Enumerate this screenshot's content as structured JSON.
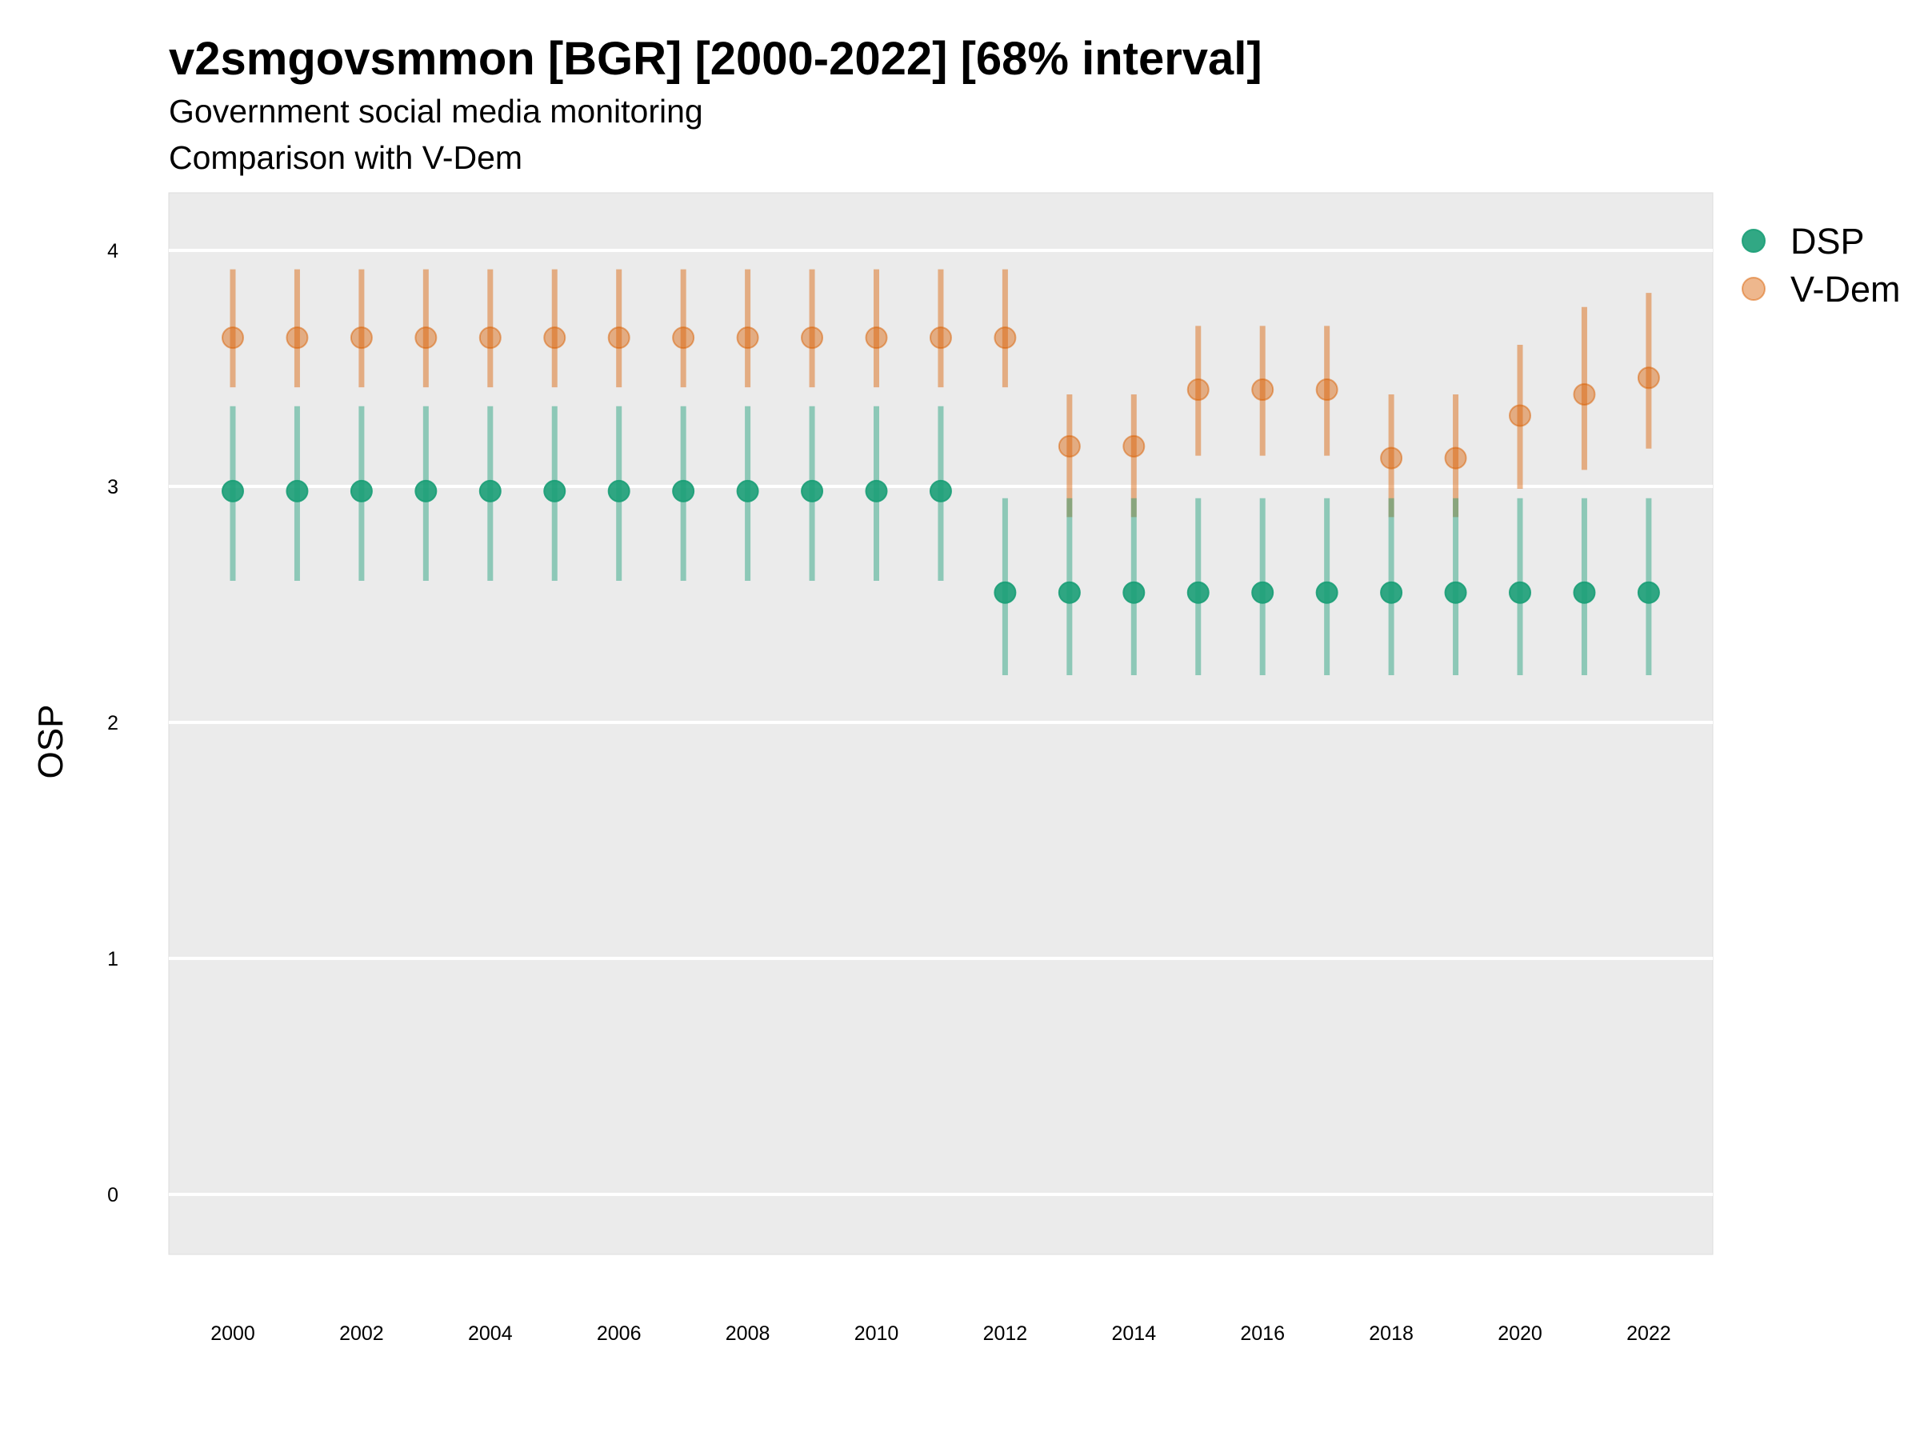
{
  "chart_data": {
    "type": "scatter",
    "title": "v2smgovsmmon [BGR] [2000-2022] [68% interval]",
    "subtitle": "Government social media monitoring",
    "caption": "Comparison with V-Dem",
    "xlabel": "",
    "ylabel": "OSP",
    "xlim": [
      1999,
      2023
    ],
    "ylim": [
      -0.25,
      4.25
    ],
    "x_ticks": [
      2000,
      2002,
      2004,
      2006,
      2008,
      2010,
      2012,
      2014,
      2016,
      2018,
      2020,
      2022
    ],
    "y_ticks": [
      0,
      1,
      2,
      3,
      4
    ],
    "grid": true,
    "legend_position": "right-top",
    "x": [
      2000,
      2001,
      2002,
      2003,
      2004,
      2005,
      2006,
      2007,
      2008,
      2009,
      2010,
      2011,
      2012,
      2013,
      2014,
      2015,
      2016,
      2017,
      2018,
      2019,
      2020,
      2021,
      2022
    ],
    "series": [
      {
        "name": "DSP",
        "color": "#1b9e77",
        "values": [
          2.98,
          2.98,
          2.98,
          2.98,
          2.98,
          2.98,
          2.98,
          2.98,
          2.98,
          2.98,
          2.98,
          2.98,
          2.55,
          2.55,
          2.55,
          2.55,
          2.55,
          2.55,
          2.55,
          2.55,
          2.55,
          2.55,
          2.55
        ],
        "lower": [
          2.6,
          2.6,
          2.6,
          2.6,
          2.6,
          2.6,
          2.6,
          2.6,
          2.6,
          2.6,
          2.6,
          2.6,
          2.2,
          2.2,
          2.2,
          2.2,
          2.2,
          2.2,
          2.2,
          2.2,
          2.2,
          2.2,
          2.2
        ],
        "upper": [
          3.34,
          3.34,
          3.34,
          3.34,
          3.34,
          3.34,
          3.34,
          3.34,
          3.34,
          3.34,
          3.34,
          3.34,
          2.95,
          2.95,
          2.95,
          2.95,
          2.95,
          2.95,
          2.95,
          2.95,
          2.95,
          2.95,
          2.95
        ]
      },
      {
        "name": "V-Dem",
        "color": "#d95f02",
        "values": [
          3.63,
          3.63,
          3.63,
          3.63,
          3.63,
          3.63,
          3.63,
          3.63,
          3.63,
          3.63,
          3.63,
          3.63,
          3.63,
          3.17,
          3.17,
          3.41,
          3.41,
          3.41,
          3.12,
          3.12,
          3.3,
          3.39,
          3.46
        ],
        "lower": [
          3.42,
          3.42,
          3.42,
          3.42,
          3.42,
          3.42,
          3.42,
          3.42,
          3.42,
          3.42,
          3.42,
          3.42,
          3.42,
          2.87,
          2.87,
          3.13,
          3.13,
          3.13,
          2.87,
          2.87,
          2.99,
          3.07,
          3.16
        ],
        "upper": [
          3.92,
          3.92,
          3.92,
          3.92,
          3.92,
          3.92,
          3.92,
          3.92,
          3.92,
          3.92,
          3.92,
          3.92,
          3.92,
          3.39,
          3.39,
          3.68,
          3.68,
          3.68,
          3.39,
          3.39,
          3.6,
          3.76,
          3.82
        ]
      }
    ]
  }
}
